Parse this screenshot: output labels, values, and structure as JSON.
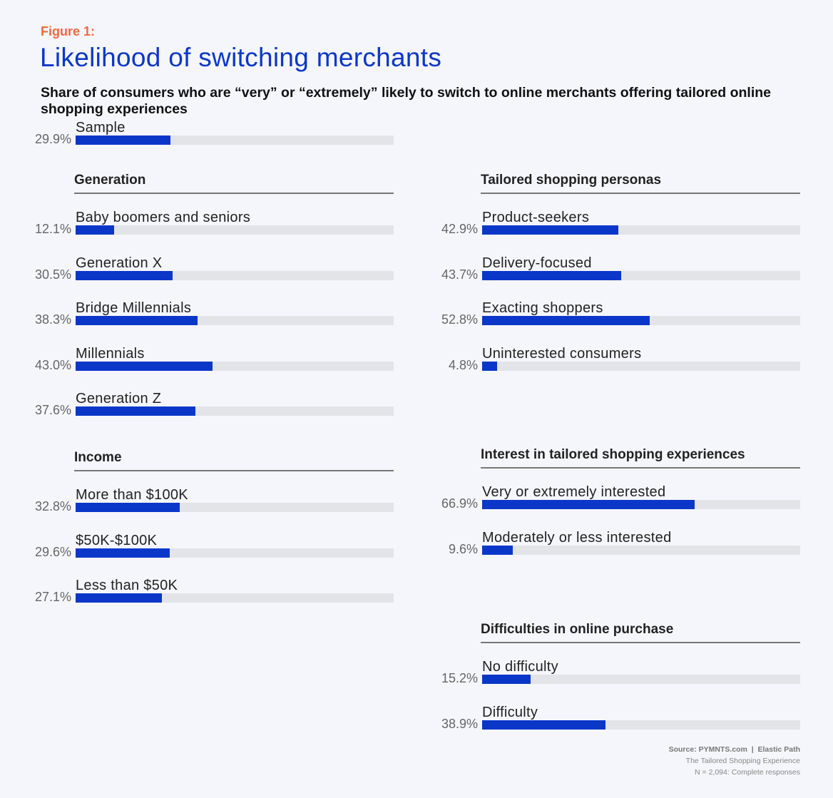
{
  "figure_label": "Figure 1:",
  "title": "Likelihood of switching merchants",
  "subtitle": "Share of consumers who are “very” or “extremely” likely to switch to online merchants offering tailored online shopping experiences",
  "source": {
    "line1": "Source: PYMNTS.com  |  Elastic Path",
    "line2": "The Tailored Shopping Experience",
    "line3": "N = 2,094: Complete responses"
  },
  "colors": {
    "bar": "#0b37c9",
    "track": "#e3e4e8",
    "figure_label": "#f06a3a",
    "title": "#0b37c9"
  },
  "chart_data": {
    "type": "bar",
    "orientation": "horizontal",
    "xlim": [
      0,
      100
    ],
    "groups": [
      {
        "title": "",
        "column": "left",
        "items": [
          {
            "label": "Sample",
            "value": 29.9,
            "display": "29.9%"
          }
        ]
      },
      {
        "title": "Generation",
        "column": "left",
        "items": [
          {
            "label": "Baby boomers and seniors",
            "value": 12.1,
            "display": "12.1%"
          },
          {
            "label": "Generation X",
            "value": 30.5,
            "display": "30.5%"
          },
          {
            "label": "Bridge Millennials",
            "value": 38.3,
            "display": "38.3%"
          },
          {
            "label": "Millennials",
            "value": 43.0,
            "display": "43.0%"
          },
          {
            "label": "Generation Z",
            "value": 37.6,
            "display": "37.6%"
          }
        ]
      },
      {
        "title": "Income",
        "column": "left",
        "items": [
          {
            "label": "More than $100K",
            "value": 32.8,
            "display": "32.8%"
          },
          {
            "label": "$50K-$100K",
            "value": 29.6,
            "display": "29.6%"
          },
          {
            "label": "Less than $50K",
            "value": 27.1,
            "display": "27.1%"
          }
        ]
      },
      {
        "title": "Tailored shopping personas",
        "column": "right",
        "items": [
          {
            "label": "Product-seekers",
            "value": 42.9,
            "display": "42.9%"
          },
          {
            "label": "Delivery-focused",
            "value": 43.7,
            "display": "43.7%"
          },
          {
            "label": "Exacting shoppers",
            "value": 52.8,
            "display": "52.8%"
          },
          {
            "label": "Uninterested consumers",
            "value": 4.8,
            "display": "4.8%"
          }
        ]
      },
      {
        "title": "Interest in tailored shopping experiences",
        "column": "right",
        "items": [
          {
            "label": "Very or extremely interested",
            "value": 66.9,
            "display": "66.9%"
          },
          {
            "label": "Moderately or less interested",
            "value": 9.6,
            "display": "9.6%"
          }
        ]
      },
      {
        "title": "Difficulties in online purchase",
        "column": "right",
        "items": [
          {
            "label": "No difficulty",
            "value": 15.2,
            "display": "15.2%"
          },
          {
            "label": "Difficulty",
            "value": 38.9,
            "display": "38.9%"
          }
        ]
      }
    ]
  }
}
